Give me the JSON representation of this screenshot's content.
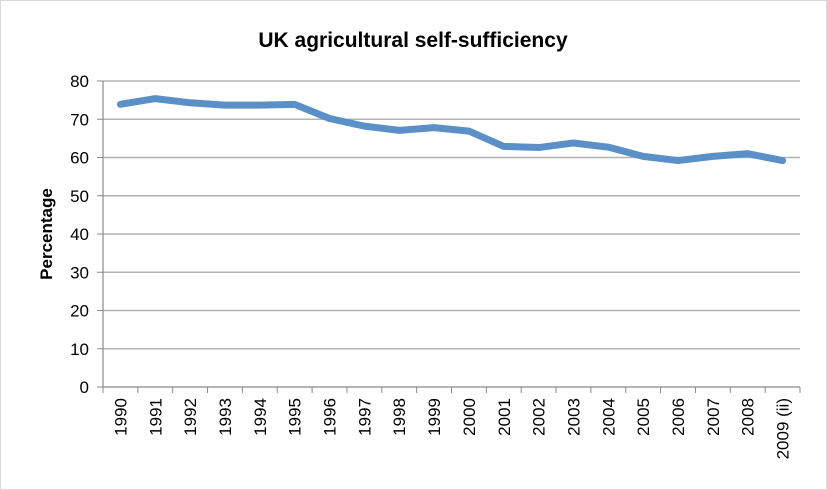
{
  "chart_data": {
    "type": "line",
    "title": "UK agricultural self-sufficiency",
    "xlabel": "",
    "ylabel": "Percentage",
    "ylim": [
      0,
      80
    ],
    "yticks": [
      0,
      10,
      20,
      30,
      40,
      50,
      60,
      70,
      80
    ],
    "grid": true,
    "legend": "none",
    "categories": [
      "1990",
      "1991",
      "1992",
      "1993",
      "1994",
      "1995",
      "1996",
      "1997",
      "1998",
      "1999",
      "2000",
      "2001",
      "2002",
      "2003",
      "2004",
      "2005",
      "2006",
      "2007",
      "2008",
      "2009 (ii)"
    ],
    "series": [
      {
        "name": "Percentage",
        "color": "#5b8fc8",
        "values": [
          73.9,
          75.4,
          74.3,
          73.7,
          73.7,
          73.9,
          70.2,
          68.2,
          67.1,
          67.8,
          66.9,
          62.9,
          62.6,
          63.8,
          62.7,
          60.3,
          59.2,
          60.3,
          61.0,
          59.2
        ]
      }
    ]
  }
}
